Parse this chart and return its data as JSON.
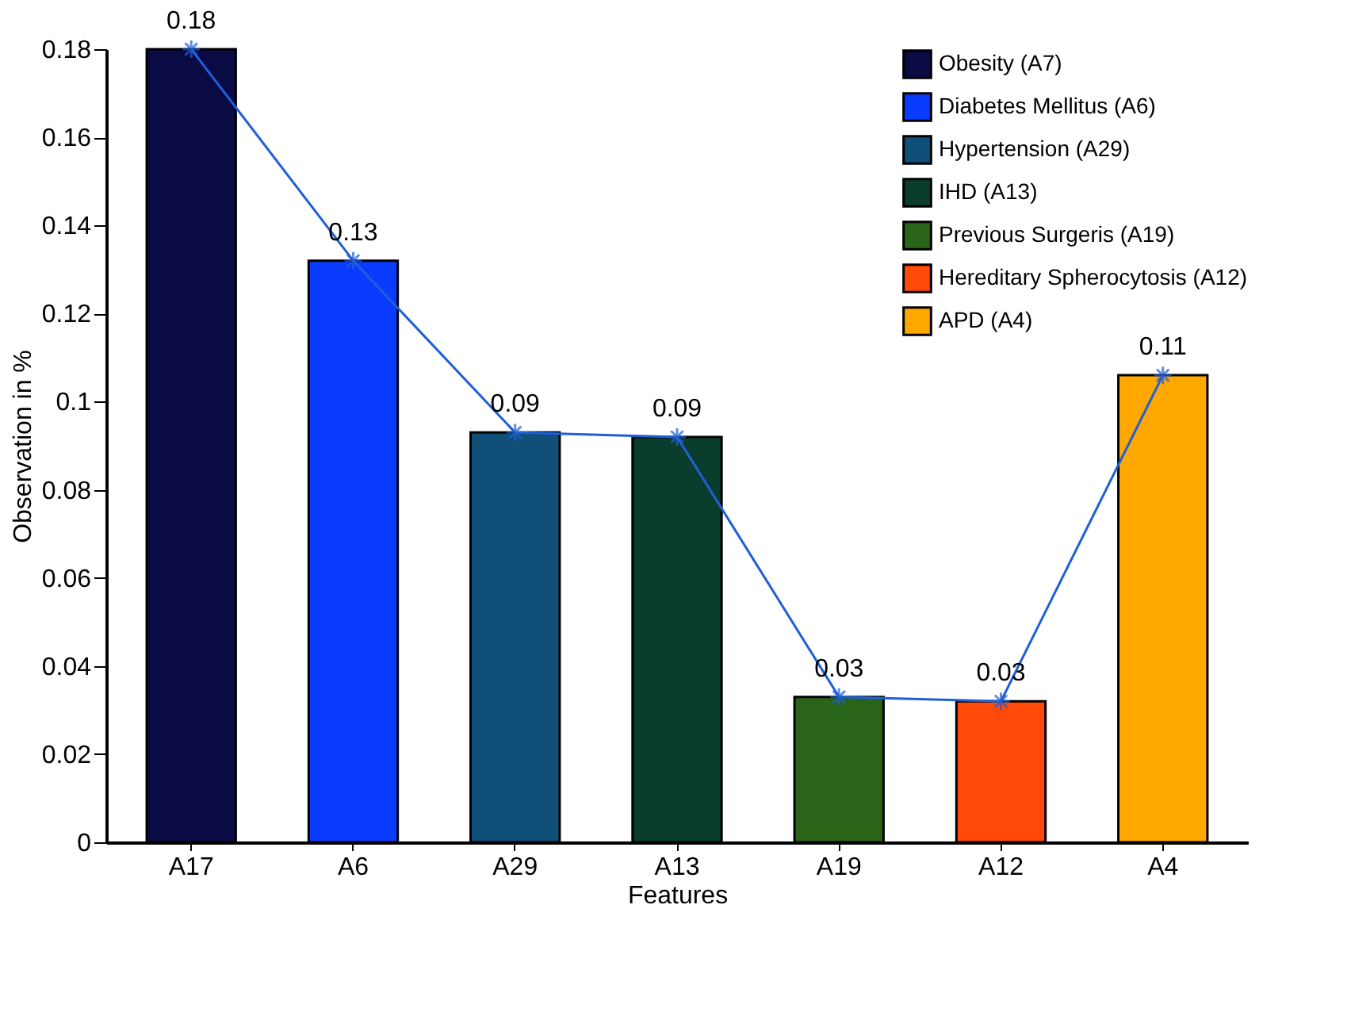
{
  "chart_data": {
    "type": "bar",
    "xlabel": "Features",
    "ylabel": "Observation in %",
    "categories": [
      "A17",
      "A6",
      "A29",
      "A13",
      "A19",
      "A12",
      "A4"
    ],
    "series": [
      {
        "name": "Obesity (A7)",
        "color": "#0a0a45",
        "values": [
          0.18,
          null,
          null,
          null,
          null,
          null,
          null
        ]
      },
      {
        "name": "Diabetes Mellitus (A6)",
        "color": "#0a3cff",
        "values": [
          null,
          0.132,
          null,
          null,
          null,
          null,
          null
        ]
      },
      {
        "name": "Hypertension (A29)",
        "color": "#0f4f78",
        "values": [
          null,
          null,
          0.093,
          null,
          null,
          null,
          null
        ]
      },
      {
        "name": "IHD (A13)",
        "color": "#0b3d2c",
        "values": [
          null,
          null,
          null,
          0.092,
          null,
          null,
          null
        ]
      },
      {
        "name": "Previous Surgeris (A19)",
        "color": "#2a6418",
        "values": [
          null,
          null,
          null,
          null,
          0.033,
          null,
          null
        ]
      },
      {
        "name": "Hereditary Spherocytosis (A12)",
        "color": "#ff4a0a",
        "values": [
          null,
          null,
          null,
          null,
          null,
          0.032,
          null
        ]
      },
      {
        "name": "APD (A4)",
        "color": "#ffa800",
        "values": [
          null,
          null,
          null,
          null,
          null,
          null,
          0.106
        ]
      },
      {
        "type": "line",
        "color": "#1f5fd8",
        "marker": "cross",
        "values": [
          0.18,
          0.132,
          0.093,
          0.092,
          0.033,
          0.032,
          0.106
        ],
        "value_labels": [
          "0.18",
          "0.13",
          "0.09",
          "0.09",
          "0.03",
          "0.03",
          "0.11"
        ]
      }
    ],
    "ylim": [
      0,
      0.18
    ],
    "yticks": [
      0,
      0.02,
      0.04,
      0.06,
      0.08,
      0.1,
      0.12,
      0.14,
      0.16,
      0.18
    ],
    "grid": false,
    "legend": "top right"
  }
}
